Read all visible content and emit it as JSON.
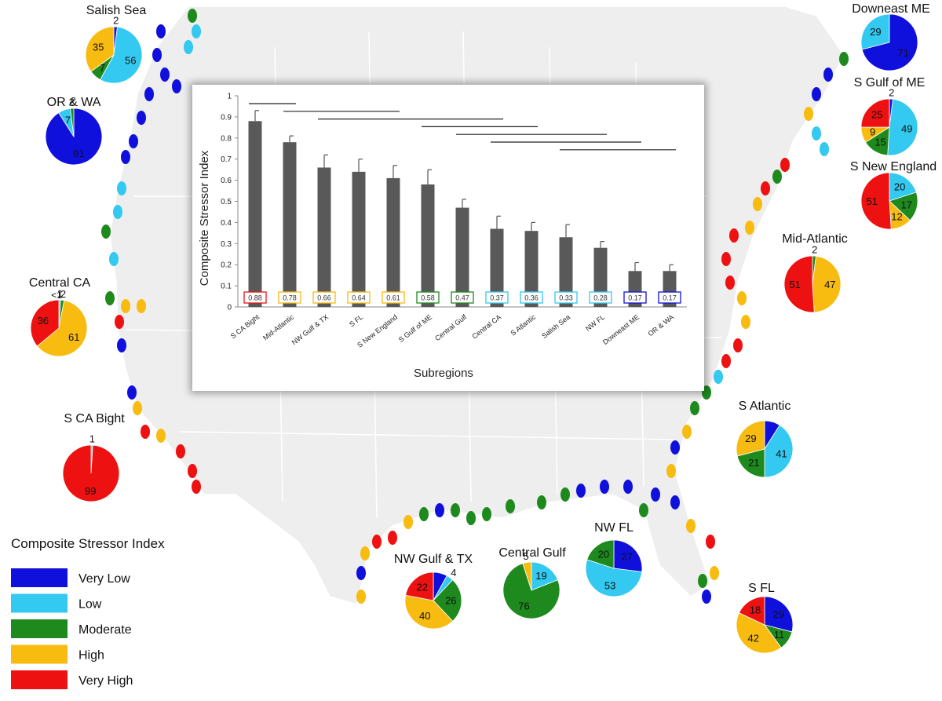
{
  "colors": {
    "very_low": "#1010dd",
    "low": "#33c9f0",
    "moderate": "#1e8a1e",
    "high": "#f8bb10",
    "very_high": "#ee1111",
    "bar": "#595959",
    "land": "#eeeeee"
  },
  "legend": {
    "title": "Composite Stressor Index",
    "items": [
      {
        "label": "Very Low",
        "key": "very_low"
      },
      {
        "label": "Low",
        "key": "low"
      },
      {
        "label": "Moderate",
        "key": "moderate"
      },
      {
        "label": "High",
        "key": "high"
      },
      {
        "label": "Very High",
        "key": "very_high"
      }
    ]
  },
  "chart_data": [
    {
      "type": "bar",
      "categories": [
        "S CA Bight",
        "Mid-Atlantic",
        "NW Gulf & TX",
        "S FL",
        "S New England",
        "S Gulf of ME",
        "Central Gulf",
        "Central CA",
        "S Atlantic",
        "Salish Sea",
        "NW FL",
        "Downeast ME",
        "OR & WA"
      ],
      "values": [
        0.88,
        0.78,
        0.66,
        0.64,
        0.61,
        0.58,
        0.47,
        0.37,
        0.36,
        0.33,
        0.28,
        0.17,
        0.17
      ],
      "error": [
        0.05,
        0.03,
        0.06,
        0.06,
        0.06,
        0.07,
        0.04,
        0.06,
        0.04,
        0.06,
        0.03,
        0.04,
        0.03
      ],
      "value_labels": [
        "0.88",
        "0.78",
        "0.66",
        "0.64",
        "0.61",
        "0.58",
        "0.47",
        "0.37",
        "0.36",
        "0.33",
        "0.28",
        "0.17",
        "0.17"
      ],
      "label_box_colors": [
        "very_high",
        "high",
        "high",
        "high",
        "high",
        "moderate",
        "moderate",
        "low",
        "low",
        "low",
        "low",
        "very_low",
        "very_low"
      ],
      "xlabel": "Subregions",
      "ylabel": "Composite Stressor Index",
      "ylim": [
        0,
        1
      ],
      "yticks": [
        "0",
        "0.1",
        "0.2",
        "0.3",
        "0.4",
        "0.5",
        "0.6",
        "0.7",
        "0.8",
        "0.9",
        "1"
      ],
      "groups": [
        [
          0,
          1
        ],
        [
          1,
          4
        ],
        [
          2,
          7
        ],
        [
          5,
          8
        ],
        [
          6,
          10
        ],
        [
          7,
          11
        ],
        [
          9,
          12
        ]
      ]
    },
    {
      "type": "pie",
      "order": [
        "very_low",
        "low",
        "moderate",
        "high",
        "very_high"
      ],
      "regions": [
        {
          "name": "Salish Sea",
          "slices": [
            2,
            56,
            7,
            35,
            0
          ],
          "labels": [
            "2",
            "56",
            "7",
            "35",
            ""
          ]
        },
        {
          "name": "OR & WA",
          "slices": [
            91,
            7,
            2,
            0,
            0
          ],
          "labels": [
            "91",
            "7",
            "2",
            "",
            ""
          ]
        },
        {
          "name": "Central CA",
          "slices": [
            0,
            1,
            2,
            61,
            36
          ],
          "labels": [
            "",
            "1",
            "2",
            "61",
            "36"
          ],
          "note": "<1"
        },
        {
          "name": "S CA Bight",
          "slices": [
            0,
            1,
            0,
            0,
            99
          ],
          "labels": [
            "",
            "1",
            "",
            "",
            "99"
          ]
        },
        {
          "name": "Downeast ME",
          "slices": [
            71,
            29,
            0,
            0,
            0
          ],
          "labels": [
            "71",
            "29",
            "",
            "",
            ""
          ]
        },
        {
          "name": "S Gulf of ME",
          "slices": [
            2,
            49,
            15,
            9,
            25
          ],
          "labels": [
            "2",
            "49",
            "15",
            "9",
            "25"
          ]
        },
        {
          "name": "S New England",
          "slices": [
            0,
            20,
            17,
            12,
            51
          ],
          "labels": [
            "",
            "20",
            "17",
            "12",
            "51"
          ]
        },
        {
          "name": "Mid-Atlantic",
          "slices": [
            0,
            0,
            2,
            47,
            51
          ],
          "labels": [
            "",
            "",
            "2",
            "47",
            "51"
          ]
        },
        {
          "name": "S Atlantic",
          "slices": [
            9,
            41,
            21,
            29,
            0
          ],
          "labels": [
            "",
            "41",
            "21",
            "29",
            ""
          ]
        },
        {
          "name": "S FL",
          "slices": [
            29,
            0,
            11,
            42,
            18
          ],
          "labels": [
            "29",
            "",
            "11",
            "42",
            "18"
          ]
        },
        {
          "name": "NW FL",
          "slices": [
            27,
            53,
            20,
            0,
            0
          ],
          "labels": [
            "27",
            "53",
            "20",
            "",
            ""
          ]
        },
        {
          "name": "Central Gulf",
          "slices": [
            0,
            19,
            76,
            5,
            0
          ],
          "labels": [
            "",
            "19",
            "76",
            "5",
            ""
          ]
        },
        {
          "name": "NW Gulf & TX",
          "slices": [
            8,
            4,
            26,
            40,
            22
          ],
          "labels": [
            "",
            "4",
            "26",
            "40",
            "22"
          ]
        }
      ]
    }
  ]
}
